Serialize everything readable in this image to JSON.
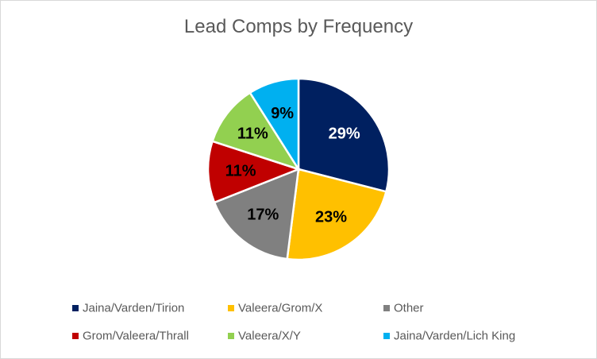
{
  "chart_data": {
    "type": "pie",
    "title": "Lead Comps by Frequency",
    "categories": [
      "Jaina/Varden/Tirion",
      "Valeera/Grom/X",
      "Other",
      "Grom/Valeera/Thrall",
      "Valeera/X/Y",
      "Jaina/Varden/Lich King"
    ],
    "values": [
      29,
      23,
      17,
      11,
      11,
      9
    ],
    "labels": [
      "29%",
      "23%",
      "17%",
      "11%",
      "11%",
      "9%"
    ],
    "colors": [
      "#002060",
      "#FFC000",
      "#808080",
      "#C00000",
      "#92D050",
      "#00B0F0"
    ],
    "label_colors": [
      "#ffffff",
      "#000000",
      "#000000",
      "#000000",
      "#000000",
      "#000000"
    ],
    "legend_position": "bottom"
  }
}
